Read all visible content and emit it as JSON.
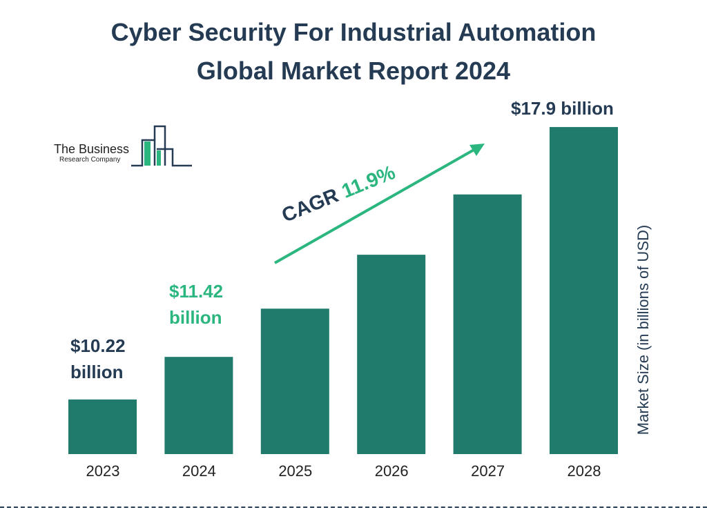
{
  "header": {
    "title_line1": "Cyber Security For Industrial Automation",
    "title_line2": "Global Market Report 2024"
  },
  "logo": {
    "line1": "The Business",
    "line2": "Research Company"
  },
  "colors": {
    "bar": "#207b6c",
    "title": "#243b53",
    "accent": "#2bb67f"
  },
  "chart_data": {
    "type": "bar",
    "categories": [
      "2023",
      "2024",
      "2025",
      "2026",
      "2027",
      "2028"
    ],
    "values": [
      10.22,
      11.42,
      12.78,
      14.3,
      16.0,
      17.9
    ],
    "data_labels": {
      "2023": [
        "$10.22",
        "billion"
      ],
      "2024": [
        "$11.42",
        "billion"
      ],
      "2028": [
        "$17.9 billion"
      ]
    },
    "ylabel": "Market Size (in billions of USD)",
    "annotation": {
      "text": "CAGR",
      "value": "11.9%"
    },
    "grid": false
  }
}
